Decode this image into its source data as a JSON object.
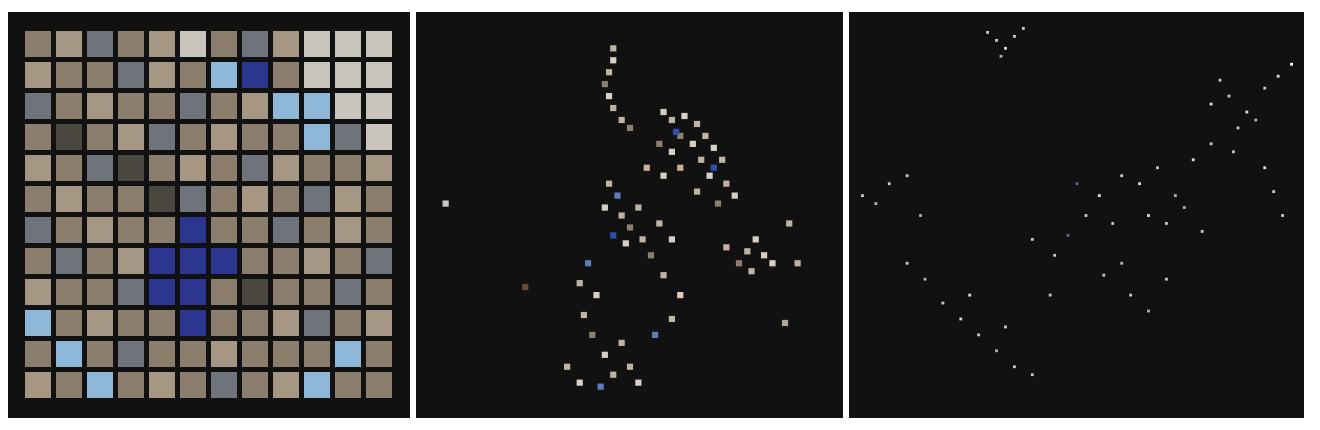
{
  "chart_data": [
    {
      "type": "heatmap",
      "tick_labels": false,
      "colors": [
        [
          "#8c7e6c",
          "#a69684",
          "#6f737c",
          "#8c7e6c",
          "#a69684",
          "#c9c4bc",
          "#8c7e6c",
          "#6f737c",
          "#a69684",
          "#c9c4bc",
          "#c9c4bc",
          "#c9c4bc"
        ],
        [
          "#a69684",
          "#8c7e6c",
          "#8c7e6c",
          "#6f737c",
          "#a69684",
          "#8c7e6c",
          "#8fb8d8",
          "#2c3590",
          "#8c7e6c",
          "#c9c4bc",
          "#c9c4bc",
          "#c9c4bc"
        ],
        [
          "#6f737c",
          "#8c7e6c",
          "#a69684",
          "#8c7e6c",
          "#8c7e6c",
          "#6f737c",
          "#8c7e6c",
          "#a69684",
          "#8fb8d8",
          "#8fb8d8",
          "#c9c4bc",
          "#c9c4bc"
        ],
        [
          "#8c7e6c",
          "#4a4640",
          "#8c7e6c",
          "#a69684",
          "#6f737c",
          "#8c7e6c",
          "#a69684",
          "#8c7e6c",
          "#8c7e6c",
          "#8fb8d8",
          "#6f737c",
          "#c9c4bc"
        ],
        [
          "#a69684",
          "#8c7e6c",
          "#6f737c",
          "#4a4640",
          "#8c7e6c",
          "#a69684",
          "#8c7e6c",
          "#6f737c",
          "#a69684",
          "#8c7e6c",
          "#8c7e6c",
          "#a69684"
        ],
        [
          "#8c7e6c",
          "#a69684",
          "#8c7e6c",
          "#8c7e6c",
          "#4a4640",
          "#6f737c",
          "#8c7e6c",
          "#a69684",
          "#8c7e6c",
          "#6f737c",
          "#a69684",
          "#8c7e6c"
        ],
        [
          "#6f737c",
          "#8c7e6c",
          "#a69684",
          "#8c7e6c",
          "#8c7e6c",
          "#2c3590",
          "#8c7e6c",
          "#8c7e6c",
          "#6f737c",
          "#8c7e6c",
          "#a69684",
          "#8c7e6c"
        ],
        [
          "#8c7e6c",
          "#6f737c",
          "#8c7e6c",
          "#a69684",
          "#2c3590",
          "#2c3590",
          "#2c3590",
          "#8c7e6c",
          "#8c7e6c",
          "#a69684",
          "#8c7e6c",
          "#6f737c"
        ],
        [
          "#a69684",
          "#8c7e6c",
          "#8c7e6c",
          "#6f737c",
          "#2c3590",
          "#2c3590",
          "#8c7e6c",
          "#4a4640",
          "#8c7e6c",
          "#8c7e6c",
          "#6f737c",
          "#8c7e6c"
        ],
        [
          "#8fb8d8",
          "#8c7e6c",
          "#a69684",
          "#8c7e6c",
          "#8c7e6c",
          "#2c3590",
          "#8c7e6c",
          "#8c7e6c",
          "#a69684",
          "#6f737c",
          "#8c7e6c",
          "#a69684"
        ],
        [
          "#8c7e6c",
          "#8fb8d8",
          "#8c7e6c",
          "#6f737c",
          "#8c7e6c",
          "#8c7e6c",
          "#a69684",
          "#8c7e6c",
          "#8c7e6c",
          "#8c7e6c",
          "#8fb8d8",
          "#8c7e6c"
        ],
        [
          "#a69684",
          "#8c7e6c",
          "#8fb8d8",
          "#8c7e6c",
          "#a69684",
          "#8c7e6c",
          "#6f737c",
          "#8c7e6c",
          "#a69684",
          "#8fb8d8",
          "#8c7e6c",
          "#8c7e6c"
        ]
      ]
    },
    {
      "type": "scatter",
      "marker": "square",
      "tick_labels": false,
      "xlim": [
        0,
        100
      ],
      "ylim": [
        0,
        100
      ],
      "x": [
        46,
        46,
        45,
        44,
        45,
        46,
        48,
        50,
        58,
        60,
        63,
        66,
        62,
        65,
        68,
        70,
        72,
        67,
        60,
        57,
        62,
        69,
        73,
        75,
        71,
        66,
        58,
        54,
        61,
        70,
        45,
        47,
        44,
        48,
        50,
        46,
        52,
        49,
        53,
        80,
        78,
        82,
        76,
        79,
        84,
        73,
        88,
        90,
        57,
        60,
        55,
        58,
        62,
        60,
        56,
        40,
        38,
        42,
        39,
        41,
        44,
        46,
        43,
        38,
        35,
        50,
        52,
        48,
        6,
        25,
        87
      ],
      "y": [
        92,
        89,
        86,
        83,
        80,
        77,
        74,
        72,
        76,
        74,
        75,
        73,
        70,
        68,
        70,
        67,
        64,
        64,
        66,
        68,
        62,
        60,
        58,
        55,
        53,
        56,
        60,
        62,
        71,
        62,
        58,
        55,
        52,
        50,
        47,
        45,
        52,
        43,
        44,
        44,
        41,
        40,
        38,
        36,
        38,
        42,
        48,
        38,
        48,
        44,
        40,
        35,
        30,
        24,
        20,
        38,
        33,
        30,
        25,
        20,
        15,
        10,
        7,
        8,
        12,
        12,
        8,
        18,
        53,
        32,
        23
      ],
      "colors": [
        "#bfb4a0",
        "#d8d0c4",
        "#bfb4a0",
        "#8c7f6c",
        "#d8d0c4",
        "#bfb4a0",
        "#bfb4a0",
        "#8c7f6c",
        "#d8d0c4",
        "#bfb4a0",
        "#d8d0c4",
        "#bfb4a0",
        "#8c7f6c",
        "#d8d0c4",
        "#bfb4a0",
        "#d8d0c4",
        "#bfb4a0",
        "#bfb4a0",
        "#d8d0c4",
        "#8c7f6c",
        "#bfb4a0",
        "#d8d0c4",
        "#bfb4a0",
        "#d8d0c4",
        "#8c7f6c",
        "#bfb4a0",
        "#d8d0c4",
        "#bfb4a0",
        "#3050b0",
        "#3050b0",
        "#bfb4a0",
        "#5a7fb8",
        "#d8d0c4",
        "#bfb4a0",
        "#8c7f6c",
        "#3050b0",
        "#bfb4a0",
        "#d8d0c4",
        "#bfb4a0",
        "#d8d0c4",
        "#bfb4a0",
        "#d8d0c4",
        "#8c7f6c",
        "#bfb4a0",
        "#d8d0c4",
        "#bfb4a0",
        "#bfb4a0",
        "#bfb4a0",
        "#bfb4a0",
        "#d8d0c4",
        "#8c7f6c",
        "#bfb4a0",
        "#d8d0c4",
        "#bfb4a0",
        "#5a7fb8",
        "#5a7fb8",
        "#bfb4a0",
        "#d8d0c4",
        "#bfb4a0",
        "#8c7f6c",
        "#d8d0c4",
        "#bfb4a0",
        "#5a7fb8",
        "#d8d0c4",
        "#bfb4a0",
        "#bfb4a0",
        "#d8d0c4",
        "#bfb4a0",
        "#c8c8c8",
        "#6a4a30",
        "#b0a898"
      ]
    },
    {
      "type": "scatter",
      "marker": "square",
      "tick_labels": false,
      "xlim": [
        0,
        100
      ],
      "ylim": [
        0,
        100
      ],
      "x": [
        30,
        32,
        34,
        36,
        38,
        33,
        80,
        84,
        88,
        92,
        95,
        98,
        86,
        90,
        82,
        60,
        64,
        68,
        72,
        76,
        80,
        85,
        66,
        70,
        74,
        78,
        2,
        5,
        8,
        12,
        15,
        20,
        24,
        28,
        32,
        36,
        40,
        26,
        34,
        45,
        48,
        52,
        55,
        58,
        60,
        50,
        56,
        62,
        66,
        70,
        92,
        94,
        96,
        12,
        16,
        40,
        44
      ],
      "y": [
        96,
        94,
        92,
        95,
        97,
        90,
        78,
        80,
        76,
        82,
        85,
        88,
        72,
        74,
        84,
        60,
        58,
        62,
        55,
        64,
        68,
        66,
        50,
        48,
        52,
        46,
        55,
        53,
        58,
        60,
        50,
        28,
        24,
        20,
        16,
        12,
        10,
        30,
        22,
        40,
        45,
        50,
        55,
        48,
        38,
        58,
        35,
        30,
        26,
        34,
        62,
        56,
        50,
        38,
        34,
        44,
        30
      ],
      "colors": [
        "#cfc8b8",
        "#cfc8b8",
        "#e0dcd2",
        "#cfc8b8",
        "#cfc8b8",
        "#b8b0a0",
        "#e0dcd2",
        "#cfc8b8",
        "#e0dcd2",
        "#cfc8b8",
        "#e0dcd2",
        "#ffffff",
        "#cfc8b8",
        "#b8b0a0",
        "#cfc8b8",
        "#cfc8b8",
        "#e0dcd2",
        "#cfc8b8",
        "#b8b0a0",
        "#e0dcd2",
        "#cfc8b8",
        "#cfc8b8",
        "#e0dcd2",
        "#cfc8b8",
        "#b8b0a0",
        "#cfc8b8",
        "#cfc8b8",
        "#b8b0a0",
        "#cfc8b8",
        "#cfc8b8",
        "#b8b0a0",
        "#cfc8b8",
        "#e0dcd2",
        "#cfc8b8",
        "#b8b0a0",
        "#cfc8b8",
        "#cfc8b8",
        "#e0dcd2",
        "#cfc8b8",
        "#cfc8b8",
        "#6a5ab0",
        "#cfc8b8",
        "#e0dcd2",
        "#cfc8b8",
        "#b8b0a0",
        "#6a5ab0",
        "#cfc8b8",
        "#cfc8b8",
        "#b8b0a0",
        "#cfc8b8",
        "#e0dcd2",
        "#cfc8b8",
        "#cfc8b8",
        "#cfc8b8",
        "#b8b0a0",
        "#cfc8b8",
        "#cfc8b8"
      ]
    }
  ]
}
